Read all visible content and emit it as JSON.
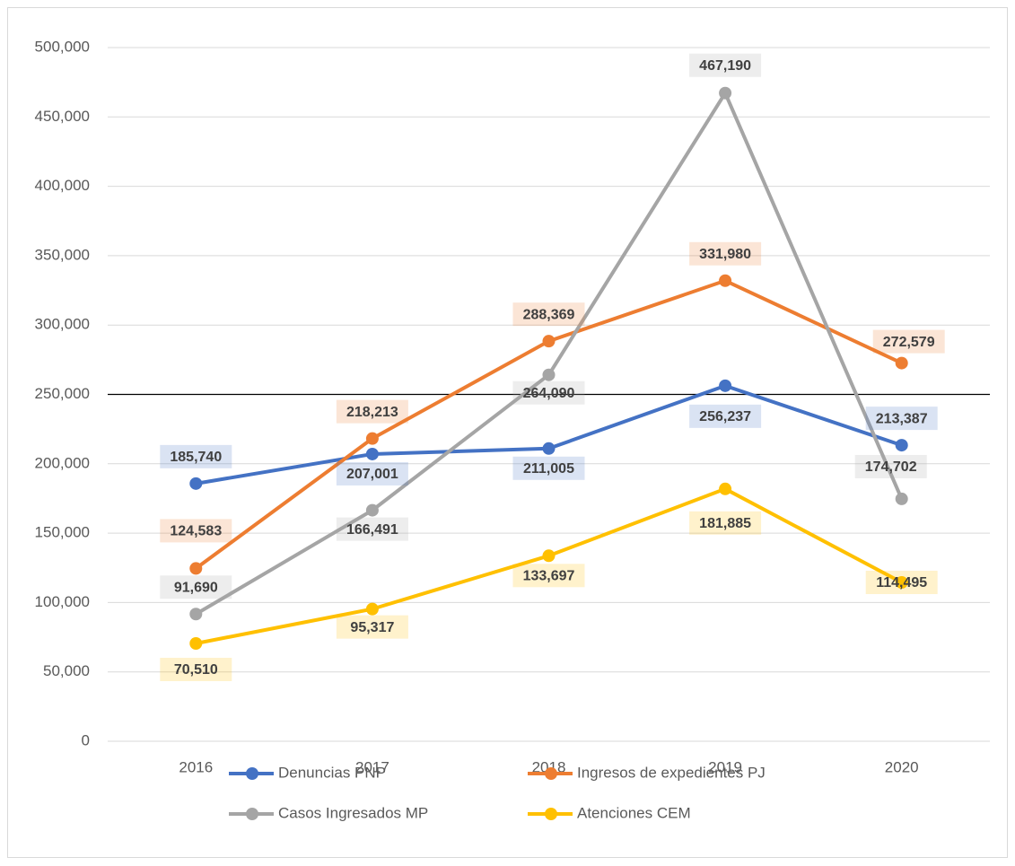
{
  "chart_data": {
    "type": "line",
    "categories": [
      "2016",
      "2017",
      "2018",
      "2019",
      "2020"
    ],
    "series": [
      {
        "name": "Denuncias PNP",
        "color": "#4472c4",
        "values": [
          185740,
          207001,
          211005,
          256237,
          213387
        ],
        "value_labels": [
          "185,740",
          "207,001",
          "211,005",
          "256,237",
          "213,387"
        ]
      },
      {
        "name": "Ingresos de expedientes PJ",
        "color": "#ed7d31",
        "values": [
          124583,
          218213,
          288369,
          331980,
          272579
        ],
        "value_labels": [
          "124,583",
          "218,213",
          "288,369",
          "331,980",
          "272,579"
        ]
      },
      {
        "name": "Casos Ingresados MP",
        "color": "#a5a5a5",
        "values": [
          91690,
          166491,
          264090,
          467190,
          174702
        ],
        "value_labels": [
          "91,690",
          "166,491",
          "264,090",
          "467,190",
          "174,702"
        ]
      },
      {
        "name": "Atenciones CEM",
        "color": "#ffc000",
        "values": [
          70510,
          95317,
          133697,
          181885,
          114495
        ],
        "value_labels": [
          "70,510",
          "95,317",
          "133,697",
          "181,885",
          "114,495"
        ]
      }
    ],
    "ylim": [
      0,
      500000
    ],
    "yticks": [
      0,
      {
        "value": 50000,
        "label": "50,000"
      },
      {
        "value": 100000,
        "label": "100,000"
      },
      {
        "value": 150000,
        "label": "150,000"
      },
      {
        "value": 200000,
        "label": "200,000"
      },
      {
        "value": 250000,
        "label": "250,000"
      },
      {
        "value": 300000,
        "label": "300,000"
      },
      {
        "value": 350000,
        "label": "350,000"
      },
      {
        "value": 400000,
        "label": "400,000"
      },
      {
        "value": 450000,
        "label": "450,000"
      },
      {
        "value": 500000,
        "label": "500,000"
      }
    ],
    "grid": true,
    "reference_line": 250000,
    "legend": "bottom"
  }
}
